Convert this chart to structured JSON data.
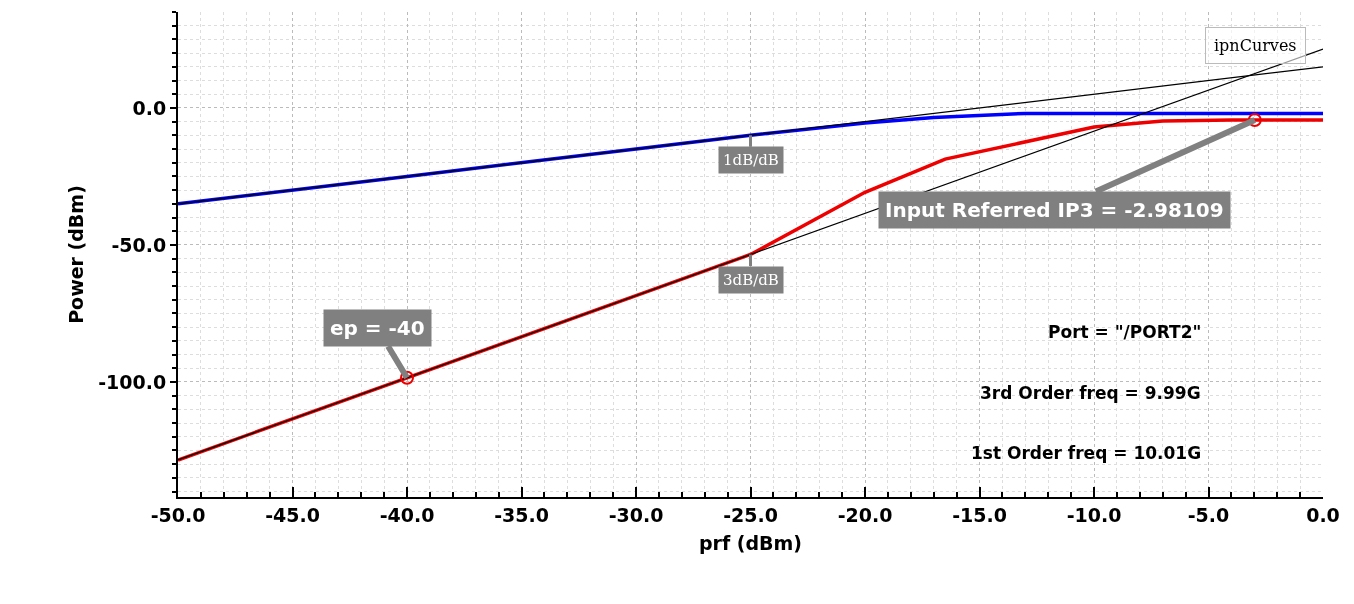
{
  "chart_data": {
    "type": "line",
    "xlabel": "prf (dBm)",
    "ylabel": "Power (dBm)",
    "xlim": [
      -50,
      0
    ],
    "xticks": [
      {
        "value": -50,
        "label": "-50.0"
      },
      {
        "value": -45,
        "label": "-45.0"
      },
      {
        "value": -40,
        "label": "-40.0"
      },
      {
        "value": -35,
        "label": "-35.0"
      },
      {
        "value": -30,
        "label": "-30.0"
      },
      {
        "value": -25,
        "label": "-25.0"
      },
      {
        "value": -20,
        "label": "-20.0"
      },
      {
        "value": -15,
        "label": "-15.0"
      },
      {
        "value": -10,
        "label": "-10.0"
      },
      {
        "value": -5,
        "label": "-5.0"
      },
      {
        "value": 0,
        "label": "0.0"
      }
    ],
    "ylim": [
      -142,
      35
    ],
    "yticks": [
      {
        "value": -100,
        "label": "-100.0"
      },
      {
        "value": -50,
        "label": "-50.0"
      },
      {
        "value": 0,
        "label": "0.0"
      }
    ],
    "grid": true,
    "line_style": "solid",
    "series": [
      {
        "color": "#0000ff",
        "x": [
          -50,
          -40,
          -30,
          -25,
          -20,
          -17,
          -13,
          -8,
          0
        ],
        "values": [
          -35,
          -25,
          -15,
          -10,
          -5.5,
          -3.5,
          -2,
          -2,
          -2
        ]
      },
      {
        "color": "#ee0000",
        "x": [
          -50,
          -40,
          -30,
          -25,
          -20,
          -16.5,
          -10,
          -7,
          -4,
          0
        ],
        "values": [
          -128.5,
          -98.5,
          -68.5,
          -53.5,
          -30.8,
          -18.7,
          -7,
          -4.8,
          -4.4,
          -4.4
        ]
      },
      {
        "color": "#000000",
        "x": [
          -50,
          0
        ],
        "values": [
          -35,
          15
        ]
      },
      {
        "color": "#000000",
        "x": [
          -50,
          0
        ],
        "values": [
          -128.5,
          21.5
        ]
      },
      {
        "type": "scatter",
        "marker": "circle",
        "color": "#ee0000",
        "x": [
          -40,
          -2.98
        ],
        "values": [
          -98.5,
          -4.4
        ]
      }
    ],
    "annotations": [
      {
        "text": "ep = -40",
        "x": -40,
        "y": -98.5
      },
      {
        "text": "Input Referred IP3 = -2.98109",
        "x": -2.98,
        "y": -4.4
      },
      {
        "text": "1dB/dB",
        "x": -25,
        "y": -10
      },
      {
        "text": "3dB/dB",
        "x": -25,
        "y": -53.5
      },
      "ipnCurves",
      "Port = \"/PORT2\"",
      "3rd Order freq = 9.99G",
      "1st Order freq = 10.01G"
    ]
  }
}
